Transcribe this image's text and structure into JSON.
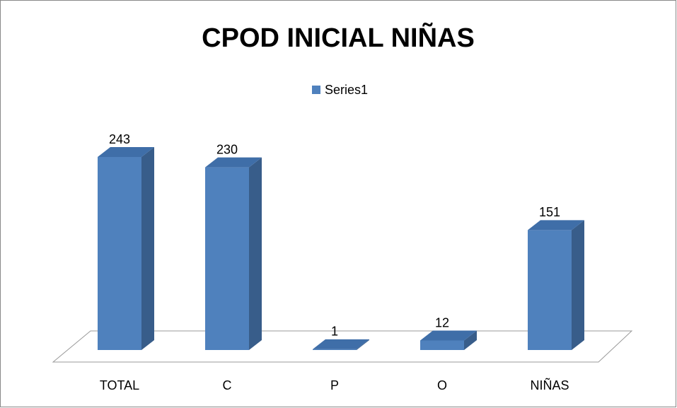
{
  "chart_data": {
    "type": "bar",
    "title": "CPOD INICIAL NIÑAS",
    "categories": [
      "TOTAL",
      "C",
      "P",
      "O",
      "NIÑAS"
    ],
    "series": [
      {
        "name": "Series1",
        "color": "#4f81bd",
        "values": [
          243,
          230,
          1,
          12,
          151
        ]
      }
    ],
    "legend": "top"
  }
}
